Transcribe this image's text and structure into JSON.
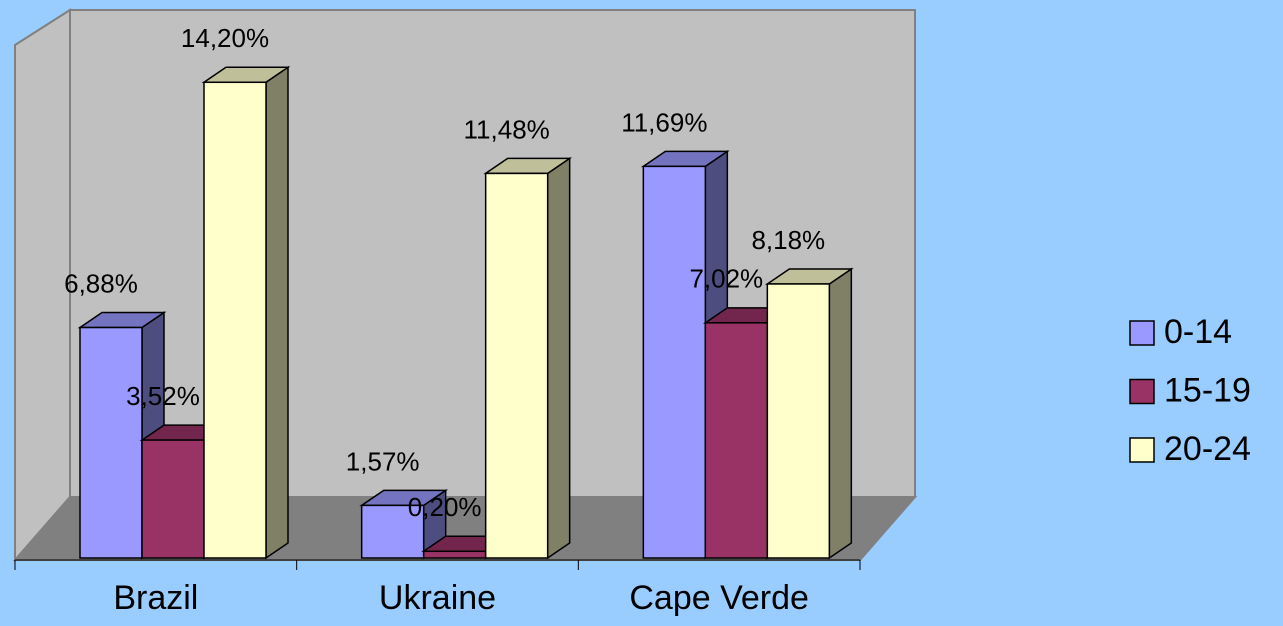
{
  "chart_data": {
    "type": "bar3d",
    "categories": [
      "Brazil",
      "Ukraine",
      "Cape Verde"
    ],
    "series": [
      {
        "name": "0-14",
        "color": "#9999ff",
        "values": [
          6.88,
          1.57,
          11.69
        ],
        "value_labels": [
          "6,88%",
          "1,57%",
          "11,69%"
        ]
      },
      {
        "name": "15-19",
        "color": "#993366",
        "values": [
          3.52,
          0.2,
          7.02
        ],
        "value_labels": [
          "3,52%",
          "0,20%",
          "7,02%"
        ]
      },
      {
        "name": "20-24",
        "color": "#ffffcc",
        "values": [
          14.2,
          11.48,
          8.18
        ],
        "value_labels": [
          "14,20%",
          "11,48%",
          "8,18%"
        ]
      }
    ],
    "legend": "right"
  }
}
